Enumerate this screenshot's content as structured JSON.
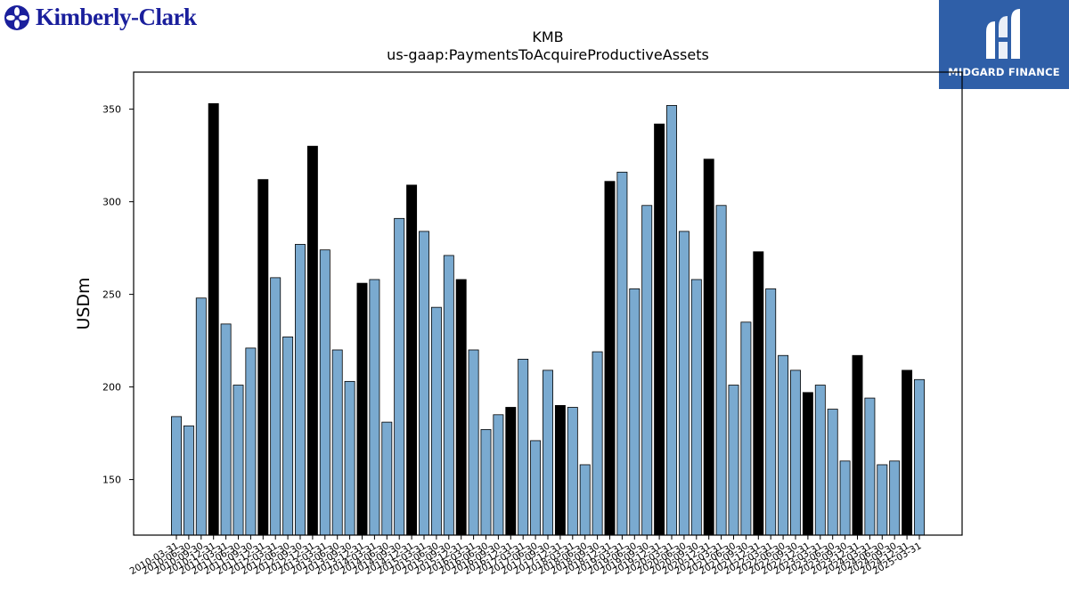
{
  "logos": {
    "left": {
      "text": "Kimberly-Clark",
      "icon": "kimberly-clark-emblem-icon",
      "color": "#1a1f9c"
    },
    "right": {
      "text": "MIDGARD FINANCE",
      "icon": "midgard-m-icon",
      "color": "#2f5fa8"
    }
  },
  "chart_data": {
    "type": "bar",
    "title": "KMB",
    "subtitle": "us-gaap:PaymentsToAcquireProductiveAssets",
    "xlabel": "",
    "ylabel": "USDm",
    "ylim": [
      120,
      370
    ],
    "yticks": [
      150,
      200,
      250,
      300,
      350
    ],
    "grid": false,
    "colors": {
      "quarter": "#7aaad0",
      "fiscal_year_end": "#000000",
      "edge": "#000000"
    },
    "categories": [
      "2010-03-31",
      "2010-06-30",
      "2010-09-30",
      "2010-12-31",
      "2011-03-31",
      "2011-06-30",
      "2011-09-30",
      "2011-12-31",
      "2012-03-31",
      "2012-06-30",
      "2012-09-30",
      "2012-12-31",
      "2013-03-31",
      "2013-06-30",
      "2013-09-30",
      "2013-12-31",
      "2014-03-31",
      "2014-06-30",
      "2014-09-30",
      "2014-12-31",
      "2015-03-31",
      "2015-06-30",
      "2015-09-30",
      "2015-12-31",
      "2016-03-31",
      "2016-06-30",
      "2016-09-30",
      "2016-12-31",
      "2017-03-31",
      "2017-06-30",
      "2017-09-30",
      "2017-12-31",
      "2018-03-31",
      "2018-06-30",
      "2018-09-30",
      "2018-12-31",
      "2019-03-31",
      "2019-06-30",
      "2019-09-30",
      "2019-12-31",
      "2020-03-31",
      "2020-06-30",
      "2020-09-30",
      "2020-12-31",
      "2021-03-31",
      "2021-06-30",
      "2021-09-30",
      "2021-12-31",
      "2022-03-31",
      "2022-06-30",
      "2022-09-30",
      "2022-12-31",
      "2023-03-31",
      "2023-06-30",
      "2023-09-30",
      "2023-12-31",
      "2024-03-31",
      "2024-06-30",
      "2024-09-30",
      "2024-12-31",
      "2025-03-31"
    ],
    "values": [
      184,
      179,
      248,
      353,
      234,
      201,
      221,
      312,
      259,
      227,
      277,
      330,
      274,
      220,
      203,
      256,
      258,
      181,
      291,
      309,
      284,
      243,
      271,
      258,
      220,
      177,
      185,
      189,
      215,
      171,
      209,
      190,
      189,
      158,
      219,
      311,
      316,
      253,
      298,
      342,
      352,
      284,
      258,
      323,
      298,
      201,
      235,
      273,
      253,
      217,
      209,
      197,
      201,
      188,
      160,
      217,
      194,
      158,
      160,
      209,
      204
    ],
    "highlight": [
      false,
      false,
      false,
      true,
      false,
      false,
      false,
      true,
      false,
      false,
      false,
      true,
      false,
      false,
      false,
      true,
      false,
      false,
      false,
      true,
      false,
      false,
      false,
      true,
      false,
      false,
      false,
      true,
      false,
      false,
      false,
      true,
      false,
      false,
      false,
      true,
      false,
      false,
      false,
      true,
      false,
      false,
      false,
      true,
      false,
      false,
      false,
      true,
      false,
      false,
      false,
      true,
      false,
      false,
      false,
      true,
      false,
      false,
      false,
      true,
      false
    ]
  }
}
